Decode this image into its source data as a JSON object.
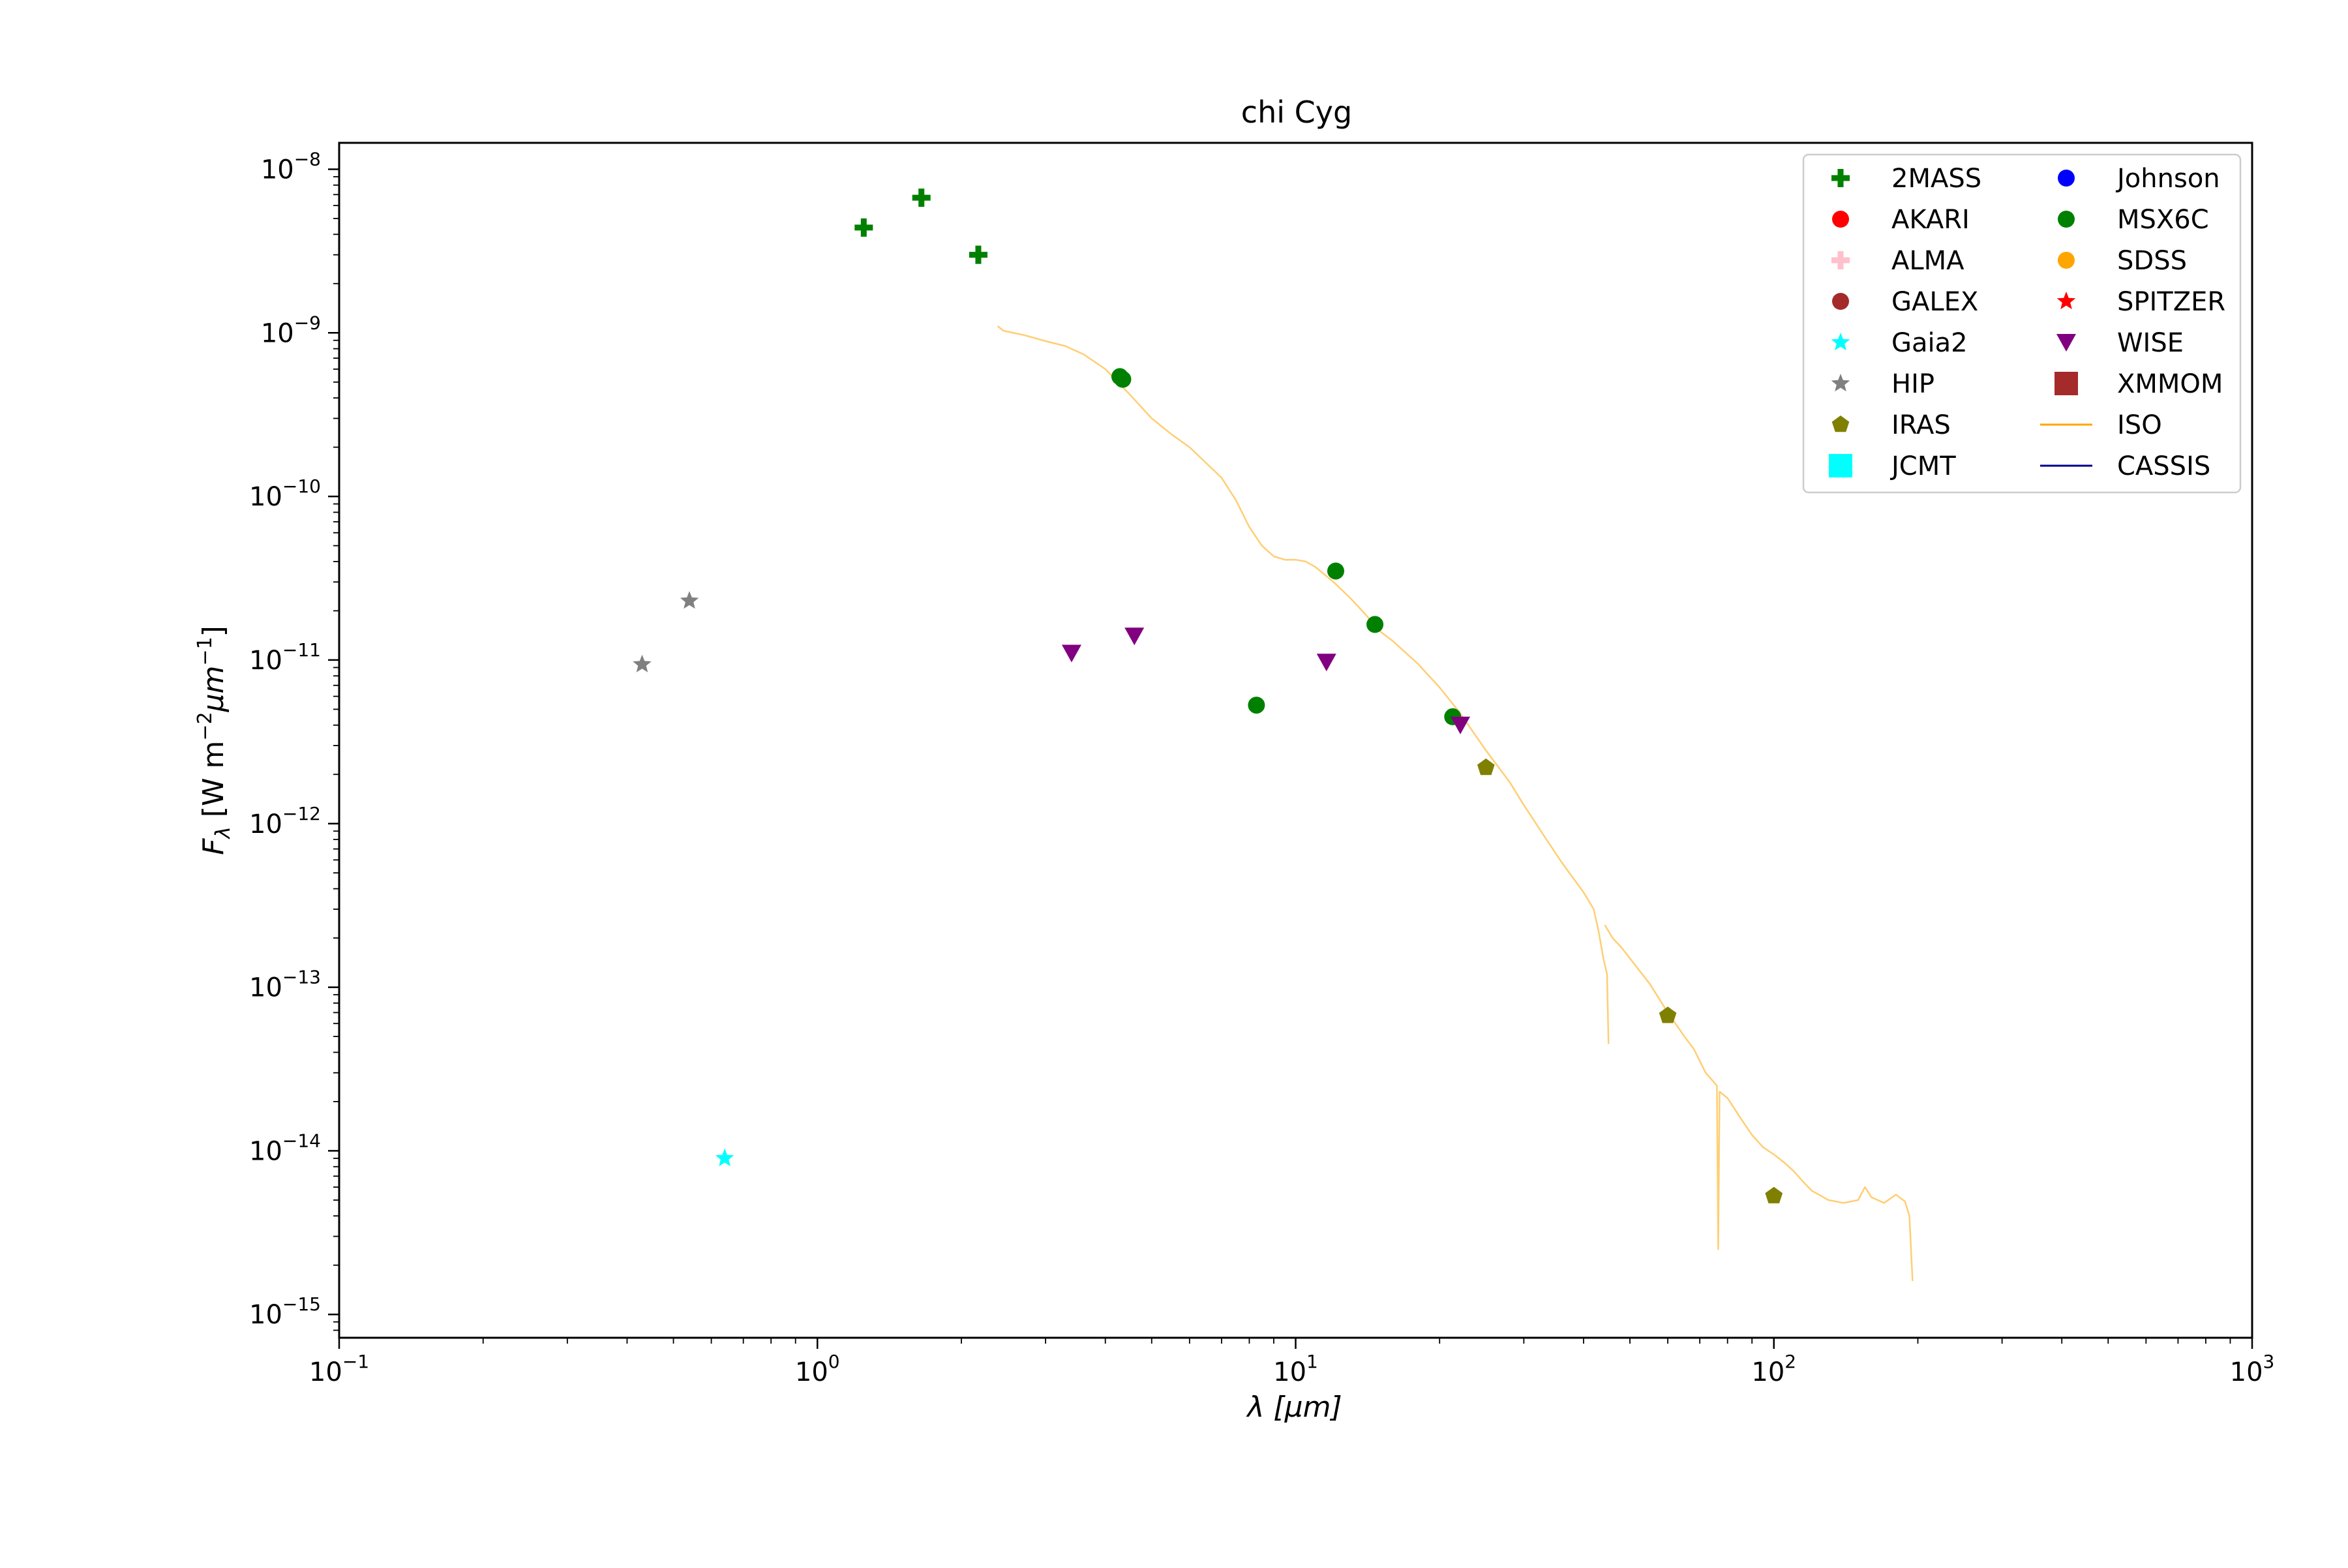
{
  "chart_data": {
    "type": "scatter",
    "title": "chi Cyg",
    "xlabel": {
      "base": "λ [",
      "unit": "μm",
      "close": "]"
    },
    "ylabel": {
      "main": "F",
      "sub": "λ",
      "rest": " [W m",
      "e1": "−2",
      "unit": "μm",
      "e2": "−1",
      "close": "]"
    },
    "xscale": "log",
    "yscale": "log",
    "xlim": [
      0.1,
      1000
    ],
    "ylim": [
      7.2e-16,
      1.45e-08
    ],
    "x_ticks": [
      {
        "value": 0.1,
        "base": "10",
        "exp": "−1"
      },
      {
        "value": 1,
        "base": "10",
        "exp": "0"
      },
      {
        "value": 10,
        "base": "10",
        "exp": "1"
      },
      {
        "value": 100,
        "base": "10",
        "exp": "2"
      },
      {
        "value": 1000,
        "base": "10",
        "exp": "3"
      }
    ],
    "y_ticks": [
      {
        "value": 1e-15,
        "base": "10",
        "exp": "−15"
      },
      {
        "value": 1e-14,
        "base": "10",
        "exp": "−14"
      },
      {
        "value": 1e-13,
        "base": "10",
        "exp": "−13"
      },
      {
        "value": 1e-12,
        "base": "10",
        "exp": "−12"
      },
      {
        "value": 1e-11,
        "base": "10",
        "exp": "−11"
      },
      {
        "value": 1e-10,
        "base": "10",
        "exp": "−10"
      },
      {
        "value": 1e-09,
        "base": "10",
        "exp": "−9"
      },
      {
        "value": 1e-08,
        "base": "10",
        "exp": "−8"
      }
    ],
    "legend": {
      "position": "top-right",
      "columns": 2
    },
    "series": [
      {
        "name": "2MASS",
        "marker": "plus",
        "color": "#008000",
        "points": [
          [
            1.25,
            4.4e-09
          ],
          [
            1.65,
            6.7e-09
          ],
          [
            2.17,
            3e-09
          ]
        ]
      },
      {
        "name": "AKARI",
        "marker": "circle",
        "color": "#ff0000",
        "points": []
      },
      {
        "name": "ALMA",
        "marker": "plus",
        "color": "#ffc0cb",
        "points": []
      },
      {
        "name": "GALEX",
        "marker": "circle",
        "color": "#a52a2a",
        "points": []
      },
      {
        "name": "Gaia2",
        "marker": "star",
        "color": "#00ffff",
        "points": [
          [
            0.64,
            9e-15
          ]
        ]
      },
      {
        "name": "HIP",
        "marker": "star",
        "color": "#808080",
        "points": [
          [
            0.43,
            9.4e-12
          ],
          [
            0.54,
            2.3e-11
          ]
        ]
      },
      {
        "name": "IRAS",
        "marker": "pentagon",
        "color": "#808000",
        "points": [
          [
            25,
            2.2e-12
          ],
          [
            60,
            6.7e-14
          ],
          [
            100,
            5.3e-15
          ]
        ]
      },
      {
        "name": "JCMT",
        "marker": "square",
        "color": "#00ffff",
        "points": []
      },
      {
        "name": "Johnson",
        "marker": "circle",
        "color": "#0000ff",
        "points": []
      },
      {
        "name": "MSX6C",
        "marker": "circle",
        "color": "#008000",
        "points": [
          [
            4.29,
            5.4e-10
          ],
          [
            4.35,
            5.2e-10
          ],
          [
            8.28,
            5.3e-12
          ],
          [
            12.13,
            3.5e-11
          ],
          [
            14.65,
            1.65e-11
          ],
          [
            21.3,
            4.5e-12
          ]
        ]
      },
      {
        "name": "SDSS",
        "marker": "circle",
        "color": "#ffa500",
        "points": []
      },
      {
        "name": "SPITZER",
        "marker": "star",
        "color": "#ff0000",
        "points": []
      },
      {
        "name": "WISE",
        "marker": "triangle-down",
        "color": "#800080",
        "points": [
          [
            3.4,
            1.1e-11
          ],
          [
            4.6,
            1.4e-11
          ],
          [
            11.6,
            9.7e-12
          ],
          [
            22.1,
            4e-12
          ]
        ]
      },
      {
        "name": "XMMOM",
        "marker": "square",
        "color": "#a52a2a",
        "points": []
      },
      {
        "name": "ISO",
        "marker": "line",
        "color": "#ffa500",
        "points": [
          [
            2.38,
            1.1e-09
          ],
          [
            2.45,
            1.03e-09
          ],
          [
            2.7,
            9.7e-10
          ],
          [
            3.0,
            8.9e-10
          ],
          [
            3.3,
            8.3e-10
          ],
          [
            3.6,
            7.4e-10
          ],
          [
            4.0,
            6e-10
          ],
          [
            4.5,
            4.2e-10
          ],
          [
            5.0,
            3e-10
          ],
          [
            5.5,
            2.4e-10
          ],
          [
            6.0,
            2e-10
          ],
          [
            6.5,
            1.6e-10
          ],
          [
            7.0,
            1.3e-10
          ],
          [
            7.5,
            9.5e-11
          ],
          [
            8.0,
            6.5e-11
          ],
          [
            8.5,
            5e-11
          ],
          [
            9.0,
            4.3e-11
          ],
          [
            9.5,
            4.1e-11
          ],
          [
            10.0,
            4.1e-11
          ],
          [
            10.5,
            4e-11
          ],
          [
            11.0,
            3.7e-11
          ],
          [
            12.0,
            3e-11
          ],
          [
            13.0,
            2.4e-11
          ],
          [
            14.0,
            1.9e-11
          ],
          [
            15.0,
            1.5e-11
          ],
          [
            16.0,
            1.3e-11
          ],
          [
            18.0,
            9.5e-12
          ],
          [
            20.0,
            6.8e-12
          ],
          [
            22.0,
            4.8e-12
          ],
          [
            25.0,
            2.8e-12
          ],
          [
            28.0,
            1.8e-12
          ],
          [
            30.0,
            1.3e-12
          ],
          [
            33.0,
            8.5e-13
          ],
          [
            36.0,
            5.8e-13
          ],
          [
            40.0,
            3.8e-13
          ],
          [
            42.0,
            3e-13
          ],
          [
            43.0,
            2.2e-13
          ],
          [
            44.0,
            1.5e-13
          ],
          [
            44.8,
            1.2e-13
          ],
          [
            45.1,
            4.5e-14
          ]
        ],
        "segments": [
          [
            [
              44.3,
              2.4e-13
            ],
            [
              46.0,
              2e-13
            ],
            [
              48.0,
              1.75e-13
            ],
            [
              50.0,
              1.5e-13
            ],
            [
              55.0,
              1.05e-13
            ],
            [
              60.0,
              7e-14
            ],
            [
              65.0,
              5e-14
            ],
            [
              68.0,
              4.2e-14
            ],
            [
              72.0,
              3e-14
            ],
            [
              76.0,
              2.5e-14
            ],
            [
              76.5,
              2.5e-15
            ],
            [
              77.0,
              2.3e-14
            ],
            [
              80.0,
              2.1e-14
            ],
            [
              85.0,
              1.6e-14
            ],
            [
              90.0,
              1.25e-14
            ],
            [
              95.0,
              1.05e-14
            ],
            [
              100.0,
              9.5e-15
            ],
            [
              105.0,
              8.5e-15
            ],
            [
              110.0,
              7.5e-15
            ],
            [
              115.0,
              6.5e-15
            ],
            [
              120.0,
              5.7e-15
            ],
            [
              130.0,
              5e-15
            ],
            [
              140.0,
              4.8e-15
            ],
            [
              150.0,
              5e-15
            ],
            [
              155.0,
              6e-15
            ],
            [
              160.0,
              5.2e-15
            ],
            [
              170.0,
              4.8e-15
            ],
            [
              180.0,
              5.4e-15
            ],
            [
              188.0,
              4.9e-15
            ],
            [
              192.0,
              4e-15
            ],
            [
              195.0,
              1.6e-15
            ]
          ]
        ]
      },
      {
        "name": "CASSIS",
        "marker": "line",
        "color": "#00008b",
        "points": []
      }
    ]
  }
}
